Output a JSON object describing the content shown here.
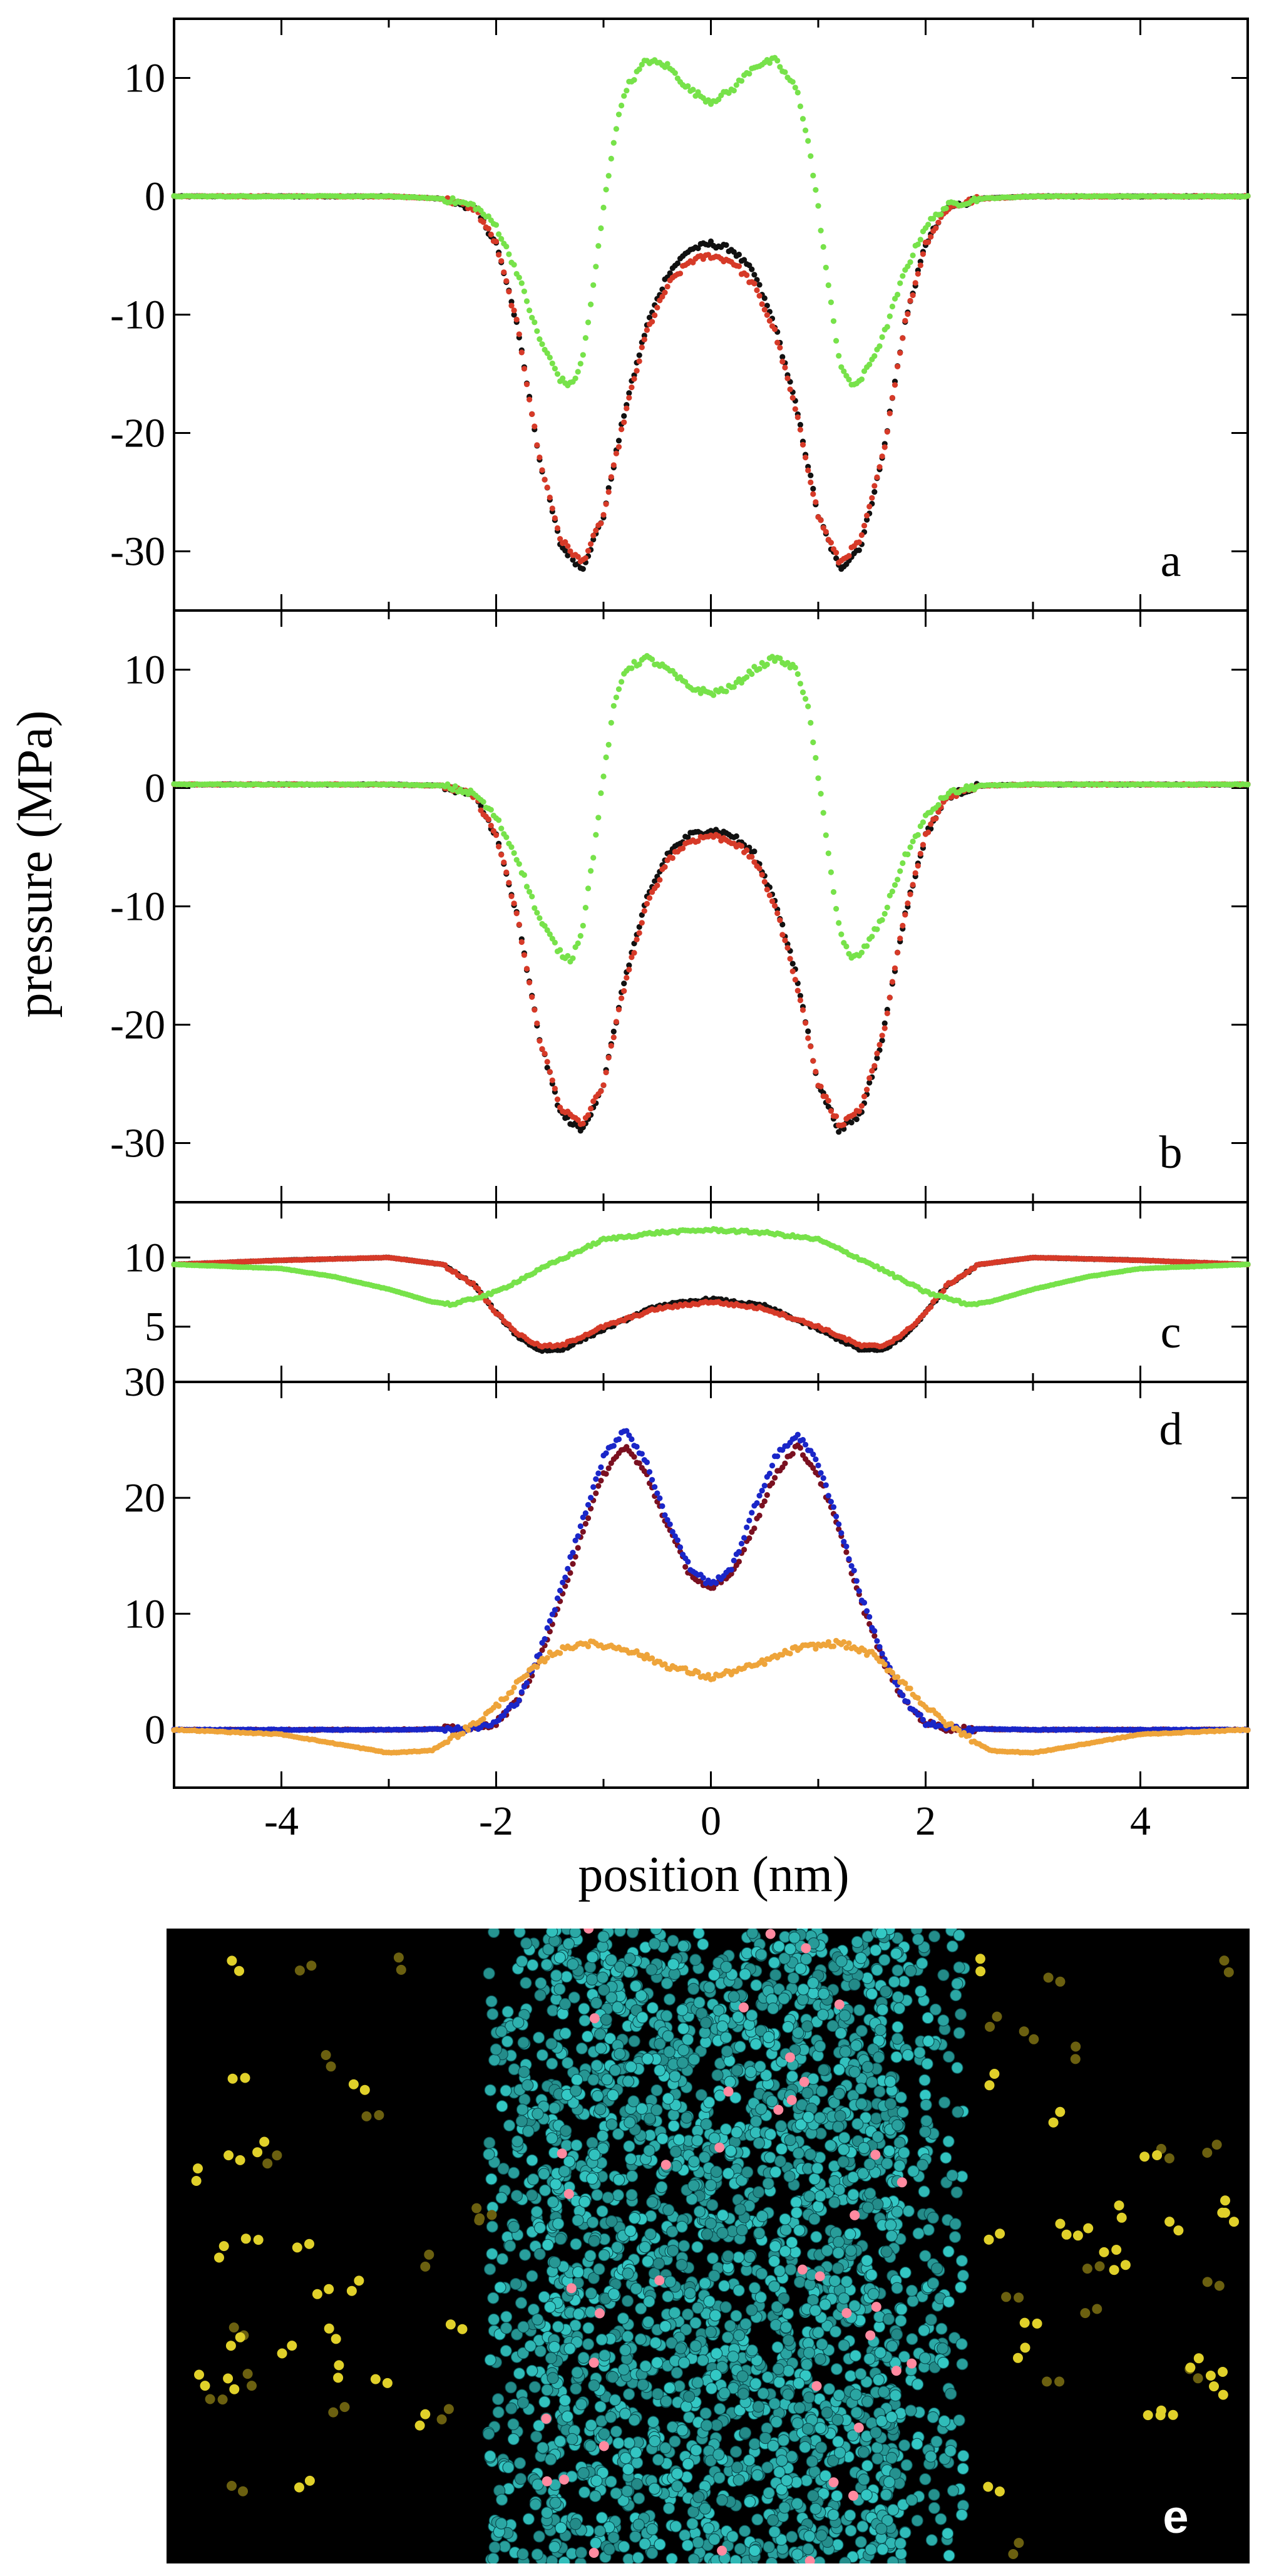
{
  "figure": {
    "ylabel": "pressure (MPa)",
    "xlabel": "position (nm)",
    "x_tick_labels": [
      "-4",
      "-2",
      "0",
      "2",
      "4"
    ],
    "panel_e_label": "e"
  },
  "colors": {
    "black_series": "#111111",
    "red_series": "#d63a28",
    "green_series": "#77e24a",
    "darkred_series": "#7a1020",
    "blue_series": "#1a26c8",
    "orange_series": "#eea43a",
    "membrane": "#2fb7b4",
    "water": "#e0d02a",
    "highlight": "#ff8aa0",
    "background_e": "#000000"
  },
  "chart_data": [
    {
      "type": "scatter",
      "panel": "a",
      "xlim": [
        -5,
        5
      ],
      "ylim": [
        -35,
        15
      ],
      "x_ticks": [
        -4,
        -2,
        0,
        2,
        4
      ],
      "y_ticks": [
        10,
        0,
        -10,
        -20,
        -30
      ],
      "y_tick_labels": [
        "10",
        "0",
        "-10",
        "-20",
        "-30"
      ],
      "series": [
        {
          "color": "black",
          "x": [
            -5,
            -3,
            -2.5,
            -2.2,
            -2,
            -1.8,
            -1.6,
            -1.4,
            -1.2,
            -1.0,
            -0.8,
            -0.6,
            -0.4,
            -0.2,
            0,
            0.2,
            0.4,
            0.6,
            0.8,
            1.0,
            1.2,
            1.4,
            1.6,
            1.8,
            2.0,
            2.2,
            2.5,
            3,
            5
          ],
          "y": [
            0,
            0,
            -0.2,
            -1.0,
            -4,
            -11,
            -22,
            -29.5,
            -31.5,
            -27,
            -18,
            -11,
            -6.5,
            -4.5,
            -4,
            -4.5,
            -6.5,
            -11,
            -18,
            -27,
            -31.5,
            -29.5,
            -22,
            -11,
            -4,
            -1.0,
            -0.2,
            0,
            0
          ]
        },
        {
          "color": "red",
          "x": [
            -5,
            -3,
            -2.5,
            -2.2,
            -2,
            -1.8,
            -1.6,
            -1.4,
            -1.2,
            -1.0,
            -0.8,
            -0.6,
            -0.4,
            -0.2,
            0,
            0.2,
            0.4,
            0.6,
            0.8,
            1.0,
            1.2,
            1.4,
            1.6,
            1.8,
            2.0,
            2.2,
            2.5,
            3,
            5
          ],
          "y": [
            0,
            0,
            -0.2,
            -1.0,
            -4,
            -11,
            -22,
            -29,
            -31,
            -27,
            -18.5,
            -11.5,
            -7.5,
            -5.5,
            -5,
            -5.5,
            -7.5,
            -11.5,
            -18.5,
            -27,
            -31,
            -29,
            -22,
            -11,
            -4,
            -1.0,
            -0.2,
            0,
            0
          ]
        },
        {
          "color": "green",
          "x": [
            -5,
            -3,
            -2.5,
            -2.2,
            -2.0,
            -1.8,
            -1.6,
            -1.4,
            -1.3,
            -1.2,
            -1.1,
            -1.0,
            -0.9,
            -0.8,
            -0.6,
            -0.4,
            -0.2,
            0,
            0.2,
            0.4,
            0.6,
            0.8,
            0.9,
            1.0,
            1.1,
            1.2,
            1.3,
            1.4,
            1.6,
            1.8,
            2.0,
            2.2,
            2.5,
            3,
            5
          ],
          "y": [
            0,
            0,
            -0.2,
            -0.8,
            -2.5,
            -6.5,
            -12,
            -15.5,
            -16,
            -14,
            -8,
            -1,
            5,
            9,
            11.5,
            11,
            9,
            8,
            9,
            11,
            11.5,
            9,
            5,
            -1,
            -8,
            -14,
            -16,
            -15.5,
            -12,
            -6.5,
            -2.5,
            -0.8,
            -0.2,
            0,
            0
          ]
        }
      ]
    },
    {
      "type": "scatter",
      "panel": "b",
      "xlim": [
        -5,
        5
      ],
      "ylim": [
        -35,
        15
      ],
      "x_ticks": [
        -4,
        -2,
        0,
        2,
        4
      ],
      "y_ticks": [
        10,
        0,
        -10,
        -20,
        -30
      ],
      "y_tick_labels": [
        "10",
        "0",
        "-10",
        "-20",
        "-30"
      ],
      "series": [
        {
          "color": "black",
          "x": [
            -5,
            -3,
            -2.5,
            -2.2,
            -2,
            -1.8,
            -1.6,
            -1.4,
            -1.2,
            -1.0,
            -0.8,
            -0.6,
            -0.4,
            -0.2,
            0,
            0.2,
            0.4,
            0.6,
            0.8,
            1.0,
            1.2,
            1.4,
            1.6,
            1.8,
            2.0,
            2.2,
            2.5,
            3,
            5
          ],
          "y": [
            0.3,
            0.3,
            0.2,
            -0.7,
            -4,
            -11,
            -21,
            -27.5,
            -29,
            -25,
            -16,
            -9.5,
            -5.5,
            -4,
            -3.5,
            -4,
            -5.5,
            -9.5,
            -16,
            -25,
            -29,
            -27.5,
            -21,
            -11,
            -4,
            -0.7,
            0.2,
            0.3,
            0.3
          ]
        },
        {
          "color": "red",
          "x": [
            -5,
            -3,
            -2.5,
            -2.2,
            -2,
            -1.8,
            -1.6,
            -1.4,
            -1.2,
            -1.0,
            -0.8,
            -0.6,
            -0.4,
            -0.2,
            0,
            0.2,
            0.4,
            0.6,
            0.8,
            1.0,
            1.2,
            1.4,
            1.6,
            1.8,
            2.0,
            2.2,
            2.5,
            3,
            5
          ],
          "y": [
            0.3,
            0.3,
            0.2,
            -0.7,
            -4,
            -11,
            -21,
            -27,
            -28.5,
            -25,
            -16.5,
            -10,
            -6,
            -4.5,
            -4,
            -4.5,
            -6,
            -10,
            -16.5,
            -25,
            -28.5,
            -27,
            -21,
            -11,
            -4,
            -0.7,
            0.2,
            0.3,
            0.3
          ]
        },
        {
          "color": "green",
          "x": [
            -5,
            -3,
            -2.5,
            -2.2,
            -2.0,
            -1.8,
            -1.6,
            -1.4,
            -1.3,
            -1.2,
            -1.1,
            -1.0,
            -0.9,
            -0.8,
            -0.6,
            -0.4,
            -0.2,
            0,
            0.2,
            0.4,
            0.6,
            0.8,
            0.9,
            1.0,
            1.1,
            1.2,
            1.3,
            1.4,
            1.6,
            1.8,
            2.0,
            2.2,
            2.5,
            3,
            5
          ],
          "y": [
            0.3,
            0.3,
            0.2,
            -0.5,
            -2.5,
            -6,
            -11,
            -14,
            -14.5,
            -12,
            -6,
            1,
            7,
            10,
            11,
            10,
            8.5,
            8,
            8.5,
            10,
            11,
            10,
            7,
            1,
            -6,
            -12,
            -14.5,
            -14,
            -11,
            -6,
            -2.5,
            -0.5,
            0.2,
            0.3,
            0.3
          ]
        }
      ]
    },
    {
      "type": "scatter",
      "panel": "c",
      "xlim": [
        -5,
        5
      ],
      "ylim": [
        1,
        14
      ],
      "x_ticks": [
        -4,
        -2,
        0,
        2,
        4
      ],
      "y_ticks": [
        10,
        5
      ],
      "y_tick_labels": [
        "10",
        "5"
      ],
      "series": [
        {
          "color": "black",
          "x": [
            -5,
            -4,
            -3,
            -2.5,
            -2.2,
            -2.0,
            -1.8,
            -1.6,
            -1.4,
            -1.0,
            -0.5,
            0,
            0.5,
            1.0,
            1.4,
            1.6,
            1.8,
            2.0,
            2.2,
            2.5,
            3,
            4,
            5
          ],
          "y": [
            9.5,
            9.8,
            10,
            9.5,
            8,
            6,
            4.3,
            3.3,
            3.3,
            4.8,
            6.5,
            7,
            6.5,
            4.8,
            3.3,
            3.3,
            4.3,
            6,
            8,
            9.5,
            10,
            9.8,
            9.5
          ]
        },
        {
          "color": "red",
          "x": [
            -5,
            -4,
            -3,
            -2.5,
            -2.2,
            -2.0,
            -1.8,
            -1.6,
            -1.4,
            -1.0,
            -0.5,
            0,
            0.5,
            1.0,
            1.4,
            1.6,
            1.8,
            2.0,
            2.2,
            2.5,
            3,
            4,
            5
          ],
          "y": [
            9.5,
            9.8,
            10,
            9.5,
            8,
            6,
            4.5,
            3.6,
            3.6,
            5,
            6.3,
            6.8,
            6.3,
            5,
            3.6,
            3.6,
            4.5,
            6,
            8,
            9.5,
            10,
            9.8,
            9.5
          ]
        },
        {
          "color": "green",
          "x": [
            -5,
            -4,
            -3.5,
            -3,
            -2.6,
            -2.4,
            -2.0,
            -1.5,
            -1.0,
            -0.5,
            0,
            0.5,
            1.0,
            1.5,
            2.0,
            2.4,
            2.6,
            3,
            3.5,
            4,
            5
          ],
          "y": [
            9.5,
            9.2,
            8.6,
            7.7,
            6.8,
            6.6,
            7.5,
            9.5,
            11.3,
            11.8,
            12,
            11.8,
            11.3,
            9.5,
            7.5,
            6.6,
            6.8,
            7.7,
            8.6,
            9.2,
            9.5
          ]
        }
      ]
    },
    {
      "type": "scatter",
      "panel": "d",
      "xlim": [
        -5,
        5
      ],
      "ylim": [
        -5,
        30
      ],
      "x_ticks": [
        -4,
        -2,
        0,
        2,
        4
      ],
      "y_ticks": [
        30,
        20,
        10,
        0
      ],
      "y_tick_labels": [
        "30",
        "20",
        "10",
        "0"
      ],
      "series": [
        {
          "color": "darkred",
          "x": [
            -5,
            -3,
            -2.2,
            -2.0,
            -1.8,
            -1.6,
            -1.4,
            -1.2,
            -1.0,
            -0.8,
            -0.6,
            -0.4,
            -0.2,
            0,
            0.2,
            0.4,
            0.6,
            0.8,
            1.0,
            1.2,
            1.4,
            1.6,
            1.8,
            2.0,
            2.2,
            3,
            5
          ],
          "y": [
            0,
            0,
            0.1,
            0.6,
            2.5,
            6,
            11,
            17,
            22,
            24.5,
            22,
            17.5,
            13.5,
            12,
            13.5,
            17.5,
            22,
            24.5,
            22,
            17,
            11,
            6,
            2.5,
            0.6,
            0.1,
            0,
            0
          ]
        },
        {
          "color": "blue",
          "x": [
            -5,
            -3,
            -2.2,
            -2.0,
            -1.8,
            -1.6,
            -1.4,
            -1.2,
            -1.0,
            -0.8,
            -0.6,
            -0.4,
            -0.2,
            0,
            0.2,
            0.4,
            0.6,
            0.8,
            1.0,
            1.2,
            1.4,
            1.6,
            1.8,
            2.0,
            2.2,
            3,
            5
          ],
          "y": [
            0,
            0,
            0.1,
            0.6,
            2.5,
            6.5,
            12,
            18,
            23.5,
            26,
            23,
            18,
            14,
            12.5,
            14,
            19,
            23.5,
            25.5,
            23,
            17.5,
            11.5,
            6.5,
            2.5,
            0.6,
            0.1,
            0,
            0
          ]
        },
        {
          "color": "orange",
          "x": [
            -5,
            -4,
            -3.5,
            -3,
            -2.6,
            -2.2,
            -2.0,
            -1.8,
            -1.5,
            -1.2,
            -0.8,
            -0.4,
            0,
            0.4,
            0.8,
            1.2,
            1.5,
            1.8,
            2.0,
            2.2,
            2.6,
            3,
            3.5,
            4,
            5
          ],
          "y": [
            0,
            -0.4,
            -1.2,
            -2,
            -1.8,
            0.5,
            2,
            4,
            6.5,
            7.5,
            7,
            5.5,
            4.5,
            5.5,
            7,
            7.5,
            6.5,
            4,
            2,
            0.5,
            -1.8,
            -2,
            -1.2,
            -0.4,
            0
          ]
        }
      ]
    }
  ]
}
